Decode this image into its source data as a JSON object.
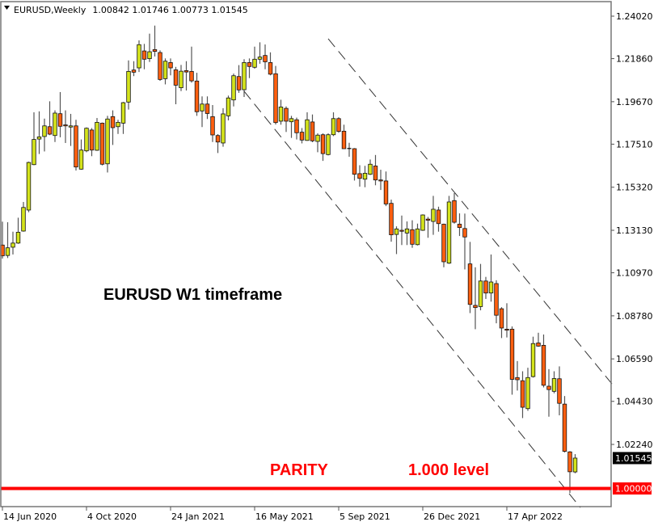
{
  "header": {
    "symbol_period": "EURUSD,Weekly",
    "ohlc": "1.00842 1.01746 1.00773 1.01545",
    "menu_icon": "triangle-down-icon"
  },
  "annotations": {
    "title": "EURUSD W1 timeframe",
    "parity": "PARITY",
    "level": "1.000 level"
  },
  "price_labels": {
    "current": "1.01545",
    "parity_line": "1.00000"
  },
  "colors": {
    "bull": "#d4e31c",
    "bear": "#ff5f0f",
    "parity_line": "#ff0000",
    "trendline": "#333333",
    "current_price_box": "#000000"
  },
  "chart_data": {
    "type": "candlestick",
    "symbol": "EURUSD",
    "timeframe": "Weekly",
    "first_bar": "14 Jun 2020",
    "y_ticks": [
      "1.24020",
      "1.21860",
      "1.19670",
      "1.17510",
      "1.15320",
      "1.13130",
      "1.10970",
      "1.08780",
      "1.06590",
      "1.04430",
      "1.02240"
    ],
    "x_ticks": [
      "14 Jun 2020",
      "4 Oct 2020",
      "24 Jan 2021",
      "16 May 2021",
      "5 Sep 2021",
      "26 Dec 2021",
      "17 Apr 2022"
    ],
    "ylim": [
      0.985,
      1.245
    ],
    "grid": false,
    "horizontal_line": {
      "price": 1.0,
      "label": "1.00000"
    },
    "channel_lines": [
      {
        "from": {
          "date": "2 May 2021",
          "price": 1.202
        },
        "to": {
          "date": "24 Jul 2022",
          "price": 0.9903
        }
      },
      {
        "from": {
          "date": "22 Aug 2021",
          "price": 1.2287
        },
        "to": {
          "date": "4 Sep 2022",
          "price": 1.0532
        }
      }
    ],
    "ohlc_fields": [
      "open",
      "high",
      "low",
      "close"
    ],
    "candles": [
      [
        1.1238,
        1.1357,
        1.1169,
        1.1183
      ],
      [
        1.1185,
        1.1354,
        1.1172,
        1.1224
      ],
      [
        1.1227,
        1.1306,
        1.119,
        1.1248
      ],
      [
        1.1248,
        1.1377,
        1.1244,
        1.1303
      ],
      [
        1.1309,
        1.1457,
        1.1306,
        1.1429
      ],
      [
        1.1416,
        1.1662,
        1.1405,
        1.1658
      ],
      [
        1.1647,
        1.1913,
        1.1644,
        1.1775
      ],
      [
        1.1777,
        1.1918,
        1.1701,
        1.1788
      ],
      [
        1.179,
        1.1881,
        1.1714,
        1.1844
      ],
      [
        1.184,
        1.1969,
        1.1797,
        1.1802
      ],
      [
        1.1795,
        1.1923,
        1.1762,
        1.1909
      ],
      [
        1.1906,
        1.2016,
        1.1786,
        1.1842
      ],
      [
        1.1849,
        1.1923,
        1.1757,
        1.1846
      ],
      [
        1.1838,
        1.1905,
        1.1742,
        1.1844
      ],
      [
        1.1844,
        1.1875,
        1.1617,
        1.1635
      ],
      [
        1.1624,
        1.1775,
        1.1621,
        1.1721
      ],
      [
        1.1717,
        1.1836,
        1.171,
        1.1832
      ],
      [
        1.1823,
        1.1833,
        1.169,
        1.1721
      ],
      [
        1.172,
        1.1884,
        1.1717,
        1.1862
      ],
      [
        1.1858,
        1.1861,
        1.1643,
        1.1649
      ],
      [
        1.1651,
        1.1895,
        1.1607,
        1.1879
      ],
      [
        1.1891,
        1.1923,
        1.1747,
        1.1835
      ],
      [
        1.184,
        1.1875,
        1.1803,
        1.1862
      ],
      [
        1.1858,
        1.1966,
        1.1803,
        1.1962
      ],
      [
        1.1965,
        1.2177,
        1.1927,
        1.2121
      ],
      [
        1.2128,
        1.2173,
        1.2097,
        1.2117
      ],
      [
        1.2139,
        1.2279,
        1.2118,
        1.2257
      ],
      [
        1.2225,
        1.2261,
        1.2132,
        1.2183
      ],
      [
        1.2186,
        1.2313,
        1.2169,
        1.2221
      ],
      [
        1.2232,
        1.2354,
        1.2197,
        1.2223
      ],
      [
        1.2217,
        1.2228,
        1.2073,
        1.208
      ],
      [
        1.2084,
        1.2187,
        1.2055,
        1.2173
      ],
      [
        1.2166,
        1.2187,
        1.2101,
        1.2139
      ],
      [
        1.2129,
        1.2144,
        1.1954,
        1.2051
      ],
      [
        1.2038,
        1.2154,
        1.2021,
        1.2122
      ],
      [
        1.2125,
        1.2173,
        1.2024,
        1.2118
      ],
      [
        1.2121,
        1.2247,
        1.2064,
        1.2073
      ],
      [
        1.2072,
        1.2114,
        1.1895,
        1.1916
      ],
      [
        1.192,
        1.1994,
        1.1838,
        1.1955
      ],
      [
        1.1955,
        1.1994,
        1.1879,
        1.1907
      ],
      [
        1.1891,
        1.195,
        1.1762,
        1.1798
      ],
      [
        1.1795,
        1.1802,
        1.1706,
        1.1762
      ],
      [
        1.1757,
        1.1934,
        1.1738,
        1.1905
      ],
      [
        1.1895,
        1.1998,
        1.1872,
        1.1986
      ],
      [
        1.1976,
        1.211,
        1.1943,
        1.2099
      ],
      [
        1.2095,
        1.2153,
        1.2012,
        1.2027
      ],
      [
        1.2028,
        1.2183,
        1.1991,
        1.2166
      ],
      [
        1.2166,
        1.2187,
        1.2087,
        1.2146
      ],
      [
        1.2142,
        1.2247,
        1.2135,
        1.2183
      ],
      [
        1.2183,
        1.2269,
        1.216,
        1.2194
      ],
      [
        1.2202,
        1.2258,
        1.2132,
        1.217
      ],
      [
        1.2166,
        1.2218,
        1.2101,
        1.2107
      ],
      [
        1.2109,
        1.2149,
        1.1851,
        1.1861
      ],
      [
        1.1868,
        1.1977,
        1.185,
        1.194
      ],
      [
        1.1933,
        1.1943,
        1.1813,
        1.1868
      ],
      [
        1.1865,
        1.1895,
        1.1783,
        1.1881
      ],
      [
        1.1875,
        1.1886,
        1.1775,
        1.1809
      ],
      [
        1.1812,
        1.1833,
        1.1755,
        1.1772
      ],
      [
        1.177,
        1.1913,
        1.1768,
        1.1875
      ],
      [
        1.1864,
        1.1902,
        1.1761,
        1.1768
      ],
      [
        1.1765,
        1.1806,
        1.171,
        1.1797
      ],
      [
        1.1799,
        1.1806,
        1.1666,
        1.1703
      ],
      [
        1.1698,
        1.1806,
        1.1694,
        1.1799
      ],
      [
        1.1799,
        1.1913,
        1.1792,
        1.1881
      ],
      [
        1.1881,
        1.1888,
        1.1809,
        1.1816
      ],
      [
        1.1817,
        1.185,
        1.1727,
        1.1728
      ],
      [
        1.1729,
        1.1758,
        1.1687,
        1.1727
      ],
      [
        1.1728,
        1.1731,
        1.1566,
        1.1598
      ],
      [
        1.1601,
        1.1644,
        1.1535,
        1.1577
      ],
      [
        1.1573,
        1.1641,
        1.1532,
        1.1603
      ],
      [
        1.1598,
        1.1673,
        1.1594,
        1.1649
      ],
      [
        1.164,
        1.1696,
        1.1542,
        1.1569
      ],
      [
        1.1569,
        1.1621,
        1.1518,
        1.1564
      ],
      [
        1.1564,
        1.1612,
        1.1436,
        1.1447
      ],
      [
        1.145,
        1.1469,
        1.1255,
        1.129
      ],
      [
        1.1292,
        1.1333,
        1.1192,
        1.132
      ],
      [
        1.1313,
        1.1388,
        1.1238,
        1.131
      ],
      [
        1.1299,
        1.1358,
        1.1238,
        1.132
      ],
      [
        1.1316,
        1.1364,
        1.1224,
        1.1242
      ],
      [
        1.124,
        1.1347,
        1.1236,
        1.132
      ],
      [
        1.1313,
        1.1394,
        1.131,
        1.1391
      ],
      [
        1.137,
        1.1381,
        1.1275,
        1.1364
      ],
      [
        1.1358,
        1.1488,
        1.129,
        1.142
      ],
      [
        1.1416,
        1.1433,
        1.1306,
        1.1347
      ],
      [
        1.1344,
        1.1347,
        1.1125,
        1.1153
      ],
      [
        1.1146,
        1.1488,
        1.1142,
        1.1457
      ],
      [
        1.1464,
        1.1502,
        1.1347,
        1.1354
      ],
      [
        1.1344,
        1.1399,
        1.1284,
        1.1327
      ],
      [
        1.1322,
        1.1398,
        1.1114,
        1.1279
      ],
      [
        1.1142,
        1.1254,
        1.0892,
        1.0936
      ],
      [
        1.0931,
        1.1125,
        1.081,
        1.092
      ],
      [
        1.0925,
        1.1142,
        1.0906,
        1.1055
      ],
      [
        1.1055,
        1.1076,
        1.0964,
        1.0994
      ],
      [
        1.0994,
        1.119,
        1.095,
        1.105
      ],
      [
        1.1042,
        1.1059,
        1.084,
        1.0881
      ],
      [
        1.0914,
        1.0922,
        1.0765,
        1.0816
      ],
      [
        1.081,
        1.0942,
        1.0768,
        1.0807
      ],
      [
        1.081,
        1.0824,
        1.0477,
        1.0555
      ],
      [
        1.0564,
        1.0648,
        1.0498,
        1.0553
      ],
      [
        1.0548,
        1.0596,
        1.0358,
        1.0413
      ],
      [
        1.0406,
        1.0614,
        1.0395,
        1.0564
      ],
      [
        1.0569,
        1.0772,
        1.0564,
        1.0737
      ],
      [
        1.074,
        1.0792,
        1.0721,
        1.0724
      ],
      [
        1.0728,
        1.0783,
        1.0514,
        1.0525
      ],
      [
        1.052,
        1.0607,
        1.0365,
        1.0503
      ],
      [
        1.0494,
        1.0596,
        1.0484,
        1.0559
      ],
      [
        1.0558,
        1.0621,
        1.0372,
        1.0433
      ],
      [
        1.0429,
        1.047,
        1.0183,
        1.0189
      ],
      [
        1.0186,
        1.019,
        0.9977,
        1.0085
      ],
      [
        1.00842,
        1.01746,
        1.00773,
        1.01545
      ]
    ]
  }
}
